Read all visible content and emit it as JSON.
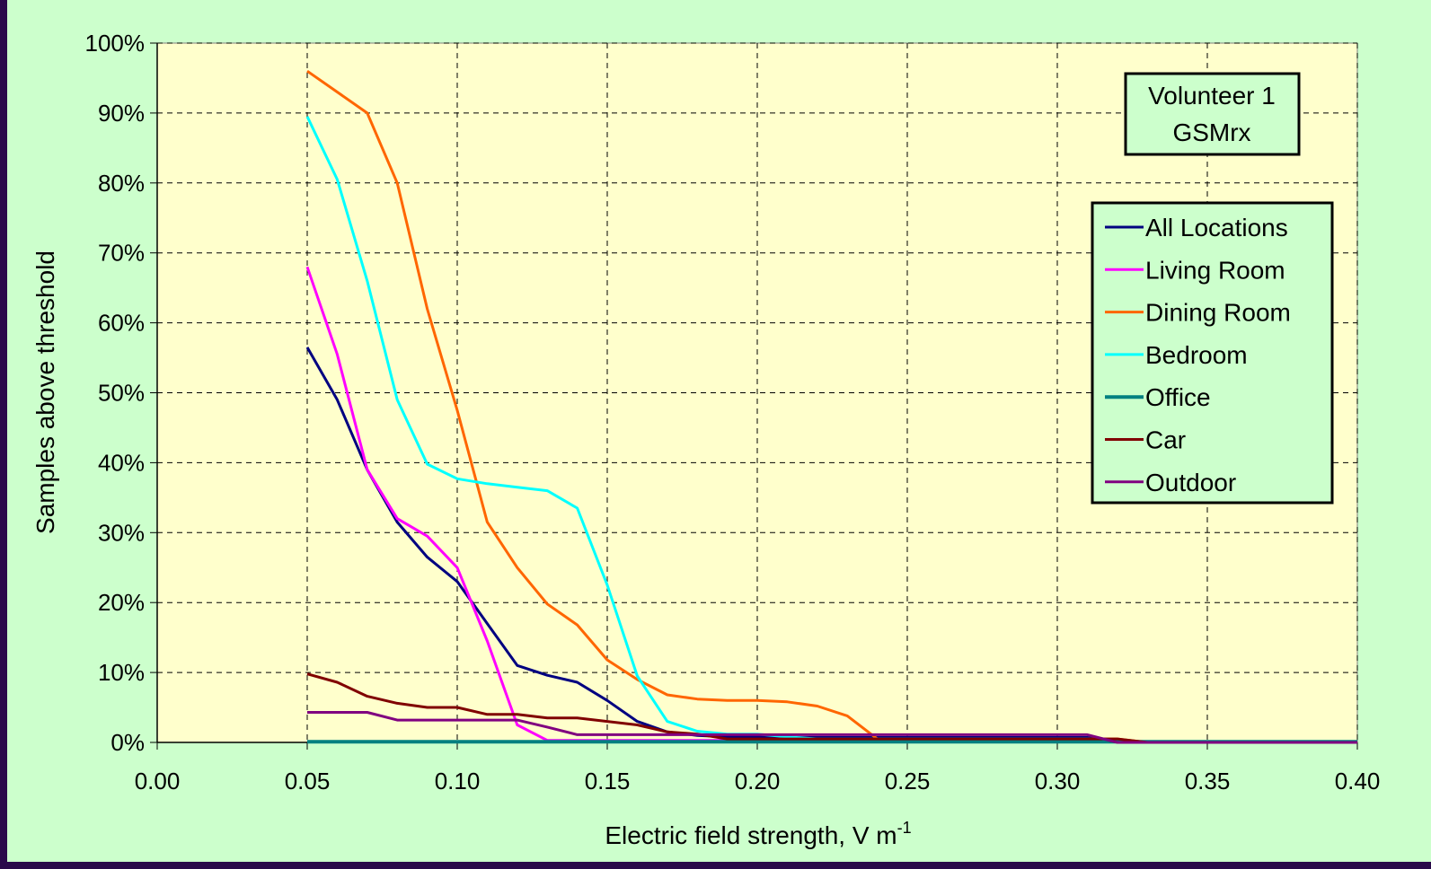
{
  "chart_data": {
    "type": "line",
    "title": "",
    "annotation": {
      "line1": "Volunteer 1",
      "line2": "GSMrx"
    },
    "xlabel": {
      "text": "Electric field strength, V m",
      "superscript": "-1"
    },
    "ylabel": "Samples above threshold",
    "xlim": [
      0.0,
      0.4
    ],
    "ylim": [
      0,
      100
    ],
    "x_ticks": [
      "0.00",
      "0.05",
      "0.10",
      "0.15",
      "0.20",
      "0.25",
      "0.30",
      "0.35",
      "0.40"
    ],
    "y_ticks": [
      "0%",
      "10%",
      "20%",
      "30%",
      "40%",
      "50%",
      "60%",
      "70%",
      "80%",
      "90%",
      "100%"
    ],
    "grid": true,
    "legend_position": "right",
    "x": [
      0.05,
      0.06,
      0.07,
      0.08,
      0.09,
      0.1,
      0.11,
      0.12,
      0.13,
      0.14,
      0.15,
      0.16,
      0.17,
      0.18,
      0.19,
      0.2,
      0.21,
      0.22,
      0.23,
      0.24,
      0.25,
      0.26,
      0.27,
      0.28,
      0.29,
      0.3,
      0.31,
      0.32,
      0.33,
      0.34,
      0.35,
      0.36,
      0.37,
      0.38,
      0.39,
      0.4
    ],
    "series": [
      {
        "name": "All Locations",
        "color": "#000080",
        "values": [
          56.5,
          49,
          39,
          31.5,
          26.5,
          23,
          17,
          11,
          9.6,
          8.6,
          6,
          3,
          1.5,
          1,
          0.8,
          0.8,
          0.7,
          0.7,
          0.7,
          0.7,
          0.7,
          0.7,
          0.7,
          0.7,
          0.7,
          0.7,
          0.7,
          0.3,
          0,
          0,
          0,
          0,
          0,
          0,
          0,
          0
        ]
      },
      {
        "name": "Living Room",
        "color": "#ff00ff",
        "values": [
          68,
          55.5,
          39,
          32,
          29.5,
          25,
          14.5,
          2.5,
          0.3,
          0.3,
          0.3,
          0.3,
          0.3,
          0.3,
          0.3,
          0.3,
          0.3,
          0.3,
          0.3,
          0.3,
          0.3,
          0.3,
          0.3,
          0.3,
          0.3,
          0.3,
          0.3,
          0.3,
          0,
          0,
          0,
          0,
          0,
          0,
          0,
          0
        ]
      },
      {
        "name": "Dining Room",
        "color": "#ff6600",
        "values": [
          96,
          93,
          90,
          80,
          62,
          47.5,
          31.5,
          25,
          19.8,
          16.8,
          11.8,
          9,
          6.8,
          6.2,
          6,
          6,
          5.8,
          5.2,
          3.8,
          0.5,
          0.5,
          0.5,
          0.5,
          0.5,
          0.5,
          0.5,
          0.5,
          0.5,
          0,
          0,
          0,
          0,
          0,
          0,
          0,
          0
        ]
      },
      {
        "name": "Bedroom",
        "color": "#00ffff",
        "values": [
          89.5,
          80.5,
          66,
          49,
          39.8,
          37.7,
          37,
          36.5,
          36,
          33.5,
          22.5,
          9.5,
          3,
          1.6,
          1.2,
          1.2,
          0.8,
          0.5,
          0.5,
          0.5,
          0.5,
          0.5,
          0.5,
          0.5,
          0.5,
          0.5,
          0.5,
          0.3,
          0,
          0,
          0,
          0,
          0,
          0,
          0,
          0
        ]
      },
      {
        "name": "Office",
        "color": "#008080",
        "values": [
          0.1,
          0.1,
          0.1,
          0.1,
          0.1,
          0.1,
          0.1,
          0.1,
          0.1,
          0.1,
          0.1,
          0.1,
          0.1,
          0.1,
          0.1,
          0.1,
          0.1,
          0.1,
          0.1,
          0.1,
          0.1,
          0.1,
          0.1,
          0.1,
          0.1,
          0.1,
          0.1,
          0.1,
          0.1,
          0.1,
          0.1,
          0.1,
          0.1,
          0.1,
          0.1,
          0.1
        ]
      },
      {
        "name": "Car",
        "color": "#800000",
        "values": [
          9.8,
          8.6,
          6.6,
          5.6,
          5,
          5,
          4,
          4,
          3.5,
          3.5,
          3,
          2.5,
          1.5,
          1.2,
          0.5,
          0.5,
          0.5,
          0.5,
          0.5,
          0.5,
          0.5,
          0.5,
          0.5,
          0.5,
          0.5,
          0.5,
          0.5,
          0.5,
          0,
          0,
          0,
          0,
          0,
          0,
          0,
          0
        ]
      },
      {
        "name": "Outdoor",
        "color": "#800080",
        "values": [
          4.3,
          4.3,
          4.3,
          3.2,
          3.2,
          3.2,
          3.2,
          3.2,
          2.2,
          1.1,
          1.1,
          1.1,
          1.1,
          1.1,
          1.1,
          1.1,
          1.1,
          1.1,
          1.1,
          1.1,
          1.1,
          1.1,
          1.1,
          1.1,
          1.1,
          1.1,
          1.1,
          0,
          0,
          0,
          0,
          0,
          0,
          0,
          0,
          0
        ]
      }
    ],
    "colors": {
      "plot_background": "#ffffcc",
      "frame_background": "#ccffcc",
      "border": "#2a0a4a"
    }
  }
}
